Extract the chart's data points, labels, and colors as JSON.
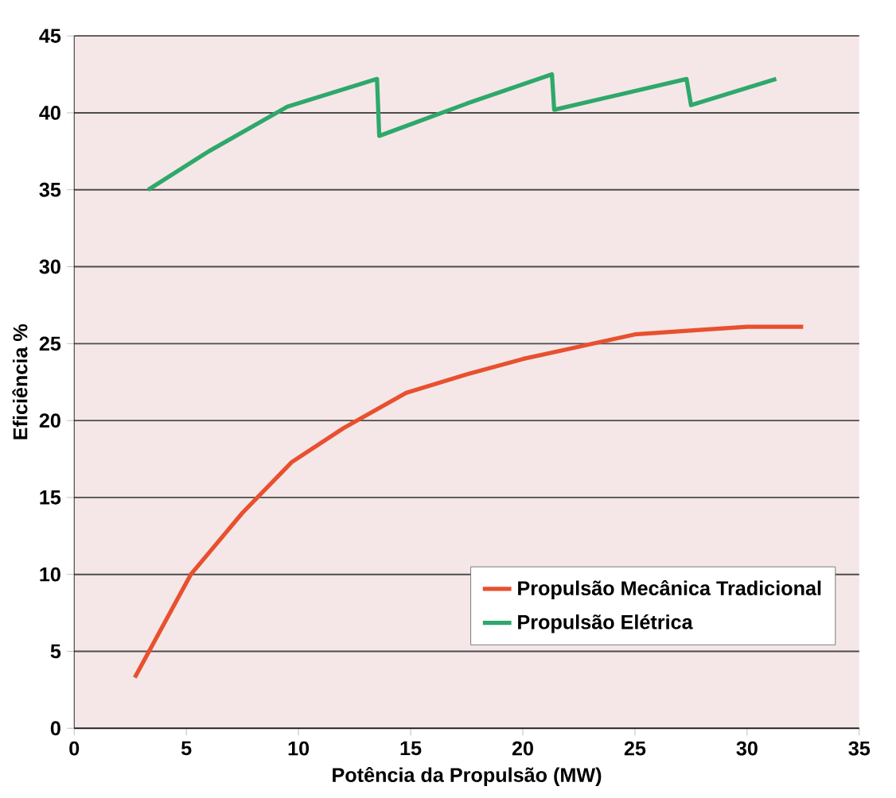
{
  "chart_data": {
    "type": "line",
    "xlabel": "Potência da Propulsão   (MW)",
    "ylabel": "Eficiência  %",
    "xlim": [
      0,
      35
    ],
    "ylim": [
      0,
      45
    ],
    "xticks": [
      0,
      5,
      10,
      15,
      20,
      25,
      30,
      35
    ],
    "yticks": [
      0,
      5,
      10,
      15,
      20,
      25,
      30,
      35,
      40,
      45
    ],
    "grid": "y",
    "legend": "bottom right",
    "marker": "none",
    "series": [
      {
        "name": "Propulsão Mecânica Tradicional",
        "color": "#e8502f",
        "x": [
          2.7,
          5.2,
          7.5,
          9.7,
          12,
          14.8,
          17.5,
          20,
          22.5,
          25,
          28,
          30,
          32.5
        ],
        "values": [
          3.3,
          10,
          14,
          17.3,
          19.5,
          21.8,
          23,
          24,
          24.8,
          25.6,
          25.9,
          26.1,
          26.1
        ]
      },
      {
        "name": "Propulsão Elétrica",
        "color": "#2ea86b",
        "x": [
          3.3,
          6,
          9.5,
          13.5,
          13.6,
          17.5,
          21.3,
          21.4,
          27.3,
          27.5,
          31.3
        ],
        "values": [
          35,
          37.5,
          40.4,
          42.2,
          38.5,
          40.6,
          42.5,
          40.2,
          42.2,
          40.5,
          42.2
        ]
      }
    ]
  }
}
